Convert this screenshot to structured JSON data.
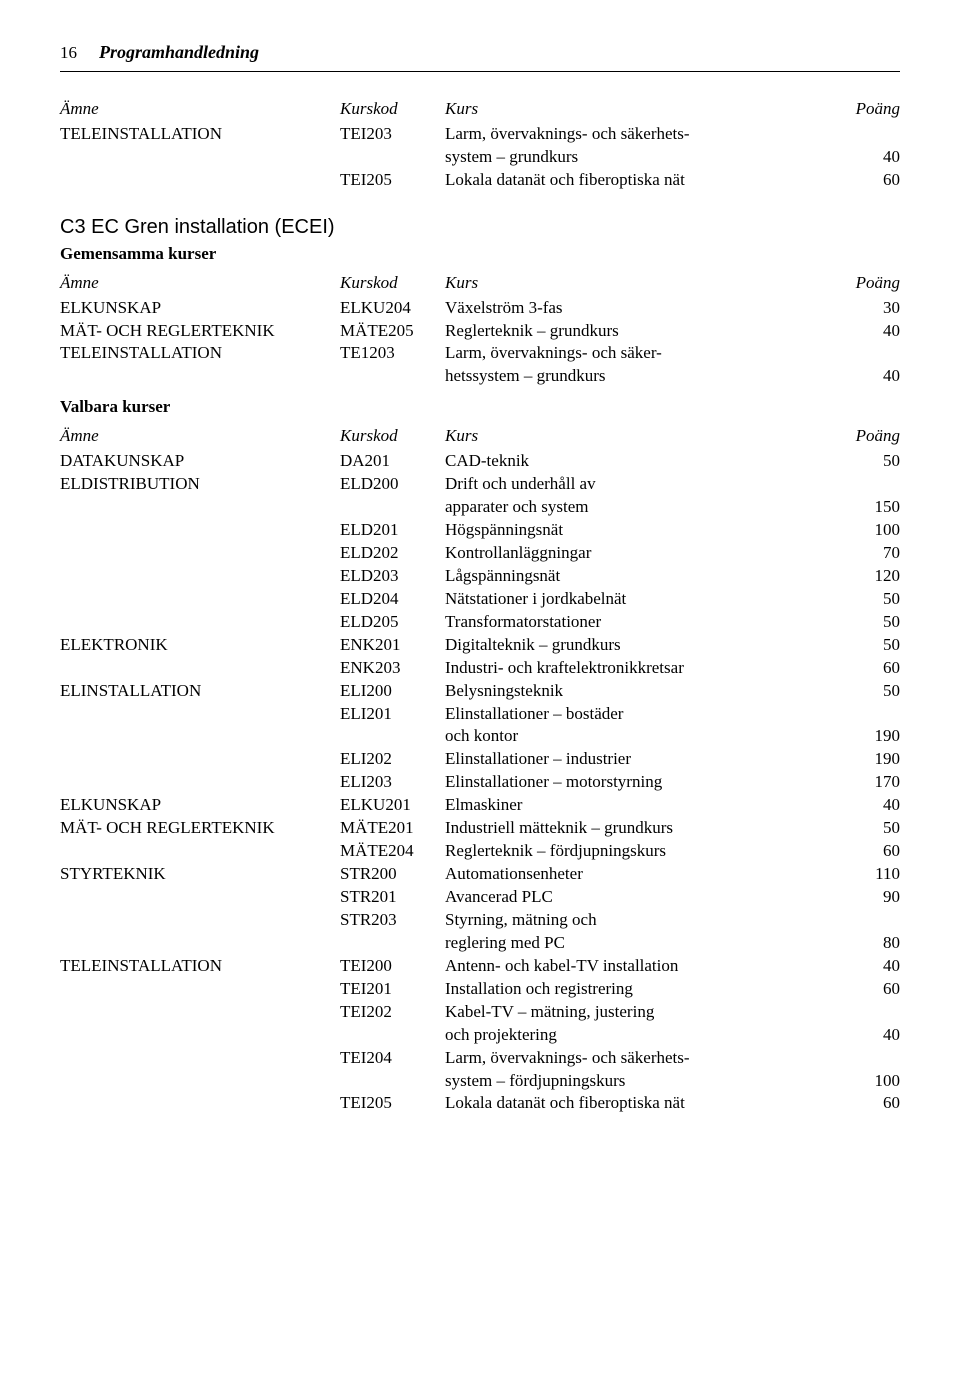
{
  "page_number": "16",
  "header": "Programhandledning",
  "columns": {
    "amne": "Ämne",
    "kod": "Kurskod",
    "kurs": "Kurs",
    "poang": "Poäng"
  },
  "top_table": {
    "rows": [
      {
        "amne": "TELEINSTALLATION",
        "kod": "TEI203",
        "kurs": "Larm, övervaknings- och säkerhets-",
        "poang": ""
      },
      {
        "amne": "",
        "kod": "",
        "kurs": "system – grundkurs",
        "poang": "40"
      },
      {
        "amne": "",
        "kod": "TEI205",
        "kurs": "Lokala datanät och fiberoptiska nät",
        "poang": "60"
      }
    ]
  },
  "section": {
    "title": "C3 EC Gren installation (ECEI)",
    "subtitle1": "Gemensamma kurser",
    "table1": {
      "rows": [
        {
          "amne": "ELKUNSKAP",
          "kod": "ELKU204",
          "kurs": "Växelström 3-fas",
          "poang": "30"
        },
        {
          "amne": "MÄT- OCH REGLERTEKNIK",
          "kod": "MÄTE205",
          "kurs": "Reglerteknik – grundkurs",
          "poang": "40"
        },
        {
          "amne": "TELEINSTALLATION",
          "kod": "TE1203",
          "kurs": "Larm, övervaknings- och säker-",
          "poang": ""
        },
        {
          "amne": "",
          "kod": "",
          "kurs": "hetssystem – grundkurs",
          "poang": "40"
        }
      ]
    },
    "subtitle2": "Valbara kurser",
    "table2": {
      "rows": [
        {
          "amne": "DATAKUNSKAP",
          "kod": "DA201",
          "kurs": "CAD-teknik",
          "poang": "50"
        },
        {
          "amne": "ELDISTRIBUTION",
          "kod": "ELD200",
          "kurs": "Drift och underhåll av",
          "poang": ""
        },
        {
          "amne": "",
          "kod": "",
          "kurs": "apparater och system",
          "poang": "150"
        },
        {
          "amne": "",
          "kod": "ELD201",
          "kurs": "Högspänningsnät",
          "poang": "100"
        },
        {
          "amne": "",
          "kod": "ELD202",
          "kurs": "Kontrollanläggningar",
          "poang": "70"
        },
        {
          "amne": "",
          "kod": "ELD203",
          "kurs": "Lågspänningsnät",
          "poang": "120"
        },
        {
          "amne": "",
          "kod": "ELD204",
          "kurs": "Nätstationer i jordkabelnät",
          "poang": "50"
        },
        {
          "amne": "",
          "kod": "ELD205",
          "kurs": "Transformatorstationer",
          "poang": "50"
        },
        {
          "amne": "ELEKTRONIK",
          "kod": "ENK201",
          "kurs": "Digitalteknik – grundkurs",
          "poang": "50"
        },
        {
          "amne": "",
          "kod": "ENK203",
          "kurs": "Industri- och kraftelektronikkretsar",
          "poang": "60"
        },
        {
          "amne": "ELINSTALLATION",
          "kod": "ELI200",
          "kurs": "Belysningsteknik",
          "poang": "50"
        },
        {
          "amne": "",
          "kod": "ELI201",
          "kurs": "Elinstallationer – bostäder",
          "poang": ""
        },
        {
          "amne": "",
          "kod": "",
          "kurs": "och kontor",
          "poang": "190"
        },
        {
          "amne": "",
          "kod": "ELI202",
          "kurs": "Elinstallationer – industrier",
          "poang": "190"
        },
        {
          "amne": "",
          "kod": "ELI203",
          "kurs": "Elinstallationer – motorstyrning",
          "poang": "170"
        },
        {
          "amne": "ELKUNSKAP",
          "kod": "ELKU201",
          "kurs": "Elmaskiner",
          "poang": "40"
        },
        {
          "amne": "MÄT- OCH REGLERTEKNIK",
          "kod": "MÄTE201",
          "kurs": "Industriell mätteknik – grundkurs",
          "poang": "50"
        },
        {
          "amne": "",
          "kod": "MÄTE204",
          "kurs": "Reglerteknik – fördjupningskurs",
          "poang": "60"
        },
        {
          "amne": "STYRTEKNIK",
          "kod": "STR200",
          "kurs": "Automationsenheter",
          "poang": "110"
        },
        {
          "amne": "",
          "kod": "STR201",
          "kurs": "Avancerad PLC",
          "poang": "90"
        },
        {
          "amne": "",
          "kod": "STR203",
          "kurs": "Styrning, mätning och",
          "poang": ""
        },
        {
          "amne": "",
          "kod": "",
          "kurs": "reglering med PC",
          "poang": "80"
        },
        {
          "amne": "TELEINSTALLATION",
          "kod": "TEI200",
          "kurs": "Antenn- och kabel-TV installation",
          "poang": "40"
        },
        {
          "amne": "",
          "kod": "TEI201",
          "kurs": "Installation och registrering",
          "poang": "60"
        },
        {
          "amne": "",
          "kod": "TEI202",
          "kurs": "Kabel-TV – mätning, justering",
          "poang": ""
        },
        {
          "amne": "",
          "kod": "",
          "kurs": "och projektering",
          "poang": "40"
        },
        {
          "amne": "",
          "kod": "TEI204",
          "kurs": "Larm, övervaknings- och säkerhets-",
          "poang": ""
        },
        {
          "amne": "",
          "kod": "",
          "kurs": "system – fördjupningskurs",
          "poang": "100"
        },
        {
          "amne": "",
          "kod": "TEI205",
          "kurs": "Lokala datanät och fiberoptiska nät",
          "poang": "60"
        }
      ]
    }
  }
}
